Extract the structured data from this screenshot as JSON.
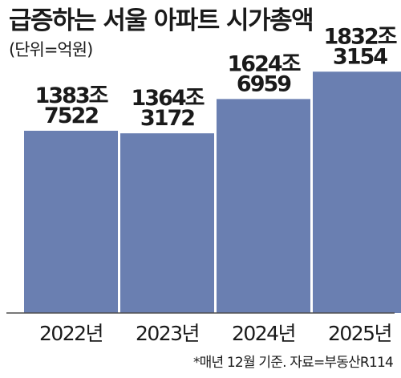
{
  "title": "급증하는 서울 아파트 시가총액",
  "unit_note": "(단위=억원)",
  "footnote": "*매년 12월 기준. 자료=부동산R114",
  "colors": {
    "bar": "#6a7fb1",
    "axis": "#4d4d4d",
    "text": "#1a1a1a"
  },
  "chart_data": {
    "type": "bar",
    "title": "급증하는 서울 아파트 시가총액",
    "subtitle": "(단위=억원)",
    "categories": [
      "2022년",
      "2023년",
      "2024년",
      "2025년"
    ],
    "values": [
      13837522,
      13643172,
      16246959,
      18323154
    ],
    "value_labels": [
      [
        "1383조",
        "7522"
      ],
      [
        "1364조",
        "3172"
      ],
      [
        "1624조",
        "6959"
      ],
      [
        "1832조",
        "3154"
      ]
    ],
    "ylim": [
      0,
      19500000
    ],
    "grid": false,
    "legend": "none",
    "source": "*매년 12월 기준. 자료=부동산R114"
  }
}
